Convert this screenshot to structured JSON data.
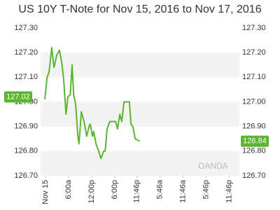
{
  "chart_data": {
    "type": "line",
    "title": "US 10Y T-Note for Nov 15, 2016 to Nov 17, 2016",
    "watermark": "OANDA",
    "color": "#5cb531",
    "x": [
      -0.2,
      0.4,
      0.9,
      1.6,
      2.2,
      2.9,
      3.6,
      4.2,
      4.7,
      5.3,
      5.8,
      6.4,
      6.9,
      7.3,
      7.8,
      8.4,
      8.7,
      9.3,
      10,
      10.7,
      11.3,
      11.6,
      12.2,
      12.5,
      13.1,
      13.8,
      14.4,
      15.1,
      15.5,
      16,
      16.7,
      18.2,
      18.7,
      19.3,
      19.8,
      20.4,
      21.8,
      22.2,
      22.7,
      23.3,
      24.5
    ],
    "values": [
      127.01,
      127.1,
      127.12,
      127.22,
      127.14,
      127.19,
      127.21,
      127.16,
      127.09,
      126.95,
      127.02,
      127.03,
      127.15,
      127.03,
      126.99,
      126.86,
      126.83,
      126.96,
      126.92,
      126.86,
      126.9,
      126.91,
      126.86,
      126.88,
      126.83,
      126.8,
      126.77,
      126.8,
      126.8,
      126.89,
      126.92,
      126.92,
      126.89,
      126.95,
      126.92,
      127,
      127,
      126.91,
      126.9,
      126.85,
      126.84
    ],
    "xlim": [
      -1.3,
      50.4
    ],
    "xticks": [
      {
        "value": 0,
        "label": "Nov 15"
      },
      {
        "value": 6,
        "label": "6:00a"
      },
      {
        "value": 12,
        "label": "12:00p"
      },
      {
        "value": 18,
        "label": "6:00p"
      },
      {
        "value": 23.77,
        "label": "11:46p"
      },
      {
        "value": 29.77,
        "label": "5:46a"
      },
      {
        "value": 35.77,
        "label": "11:46a"
      },
      {
        "value": 41.77,
        "label": "5:46p"
      },
      {
        "value": 47.77,
        "label": "11:46p"
      }
    ],
    "ylim": [
      126.7,
      127.3
    ],
    "yticks": [
      {
        "value": 126.7,
        "label": "126.70"
      },
      {
        "value": 126.8,
        "label": "126.80"
      },
      {
        "value": 126.9,
        "label": "126.90"
      },
      {
        "value": 127,
        "label": "127.00"
      },
      {
        "value": 127.1,
        "label": "127.10"
      },
      {
        "value": 127.2,
        "label": "127.20"
      },
      {
        "value": 127.3,
        "label": "127.30"
      }
    ],
    "annotations": [
      {
        "value": 127.02,
        "label": "127.02",
        "side": "left"
      },
      {
        "value": 126.84,
        "label": "126.84",
        "side": "right"
      }
    ]
  }
}
